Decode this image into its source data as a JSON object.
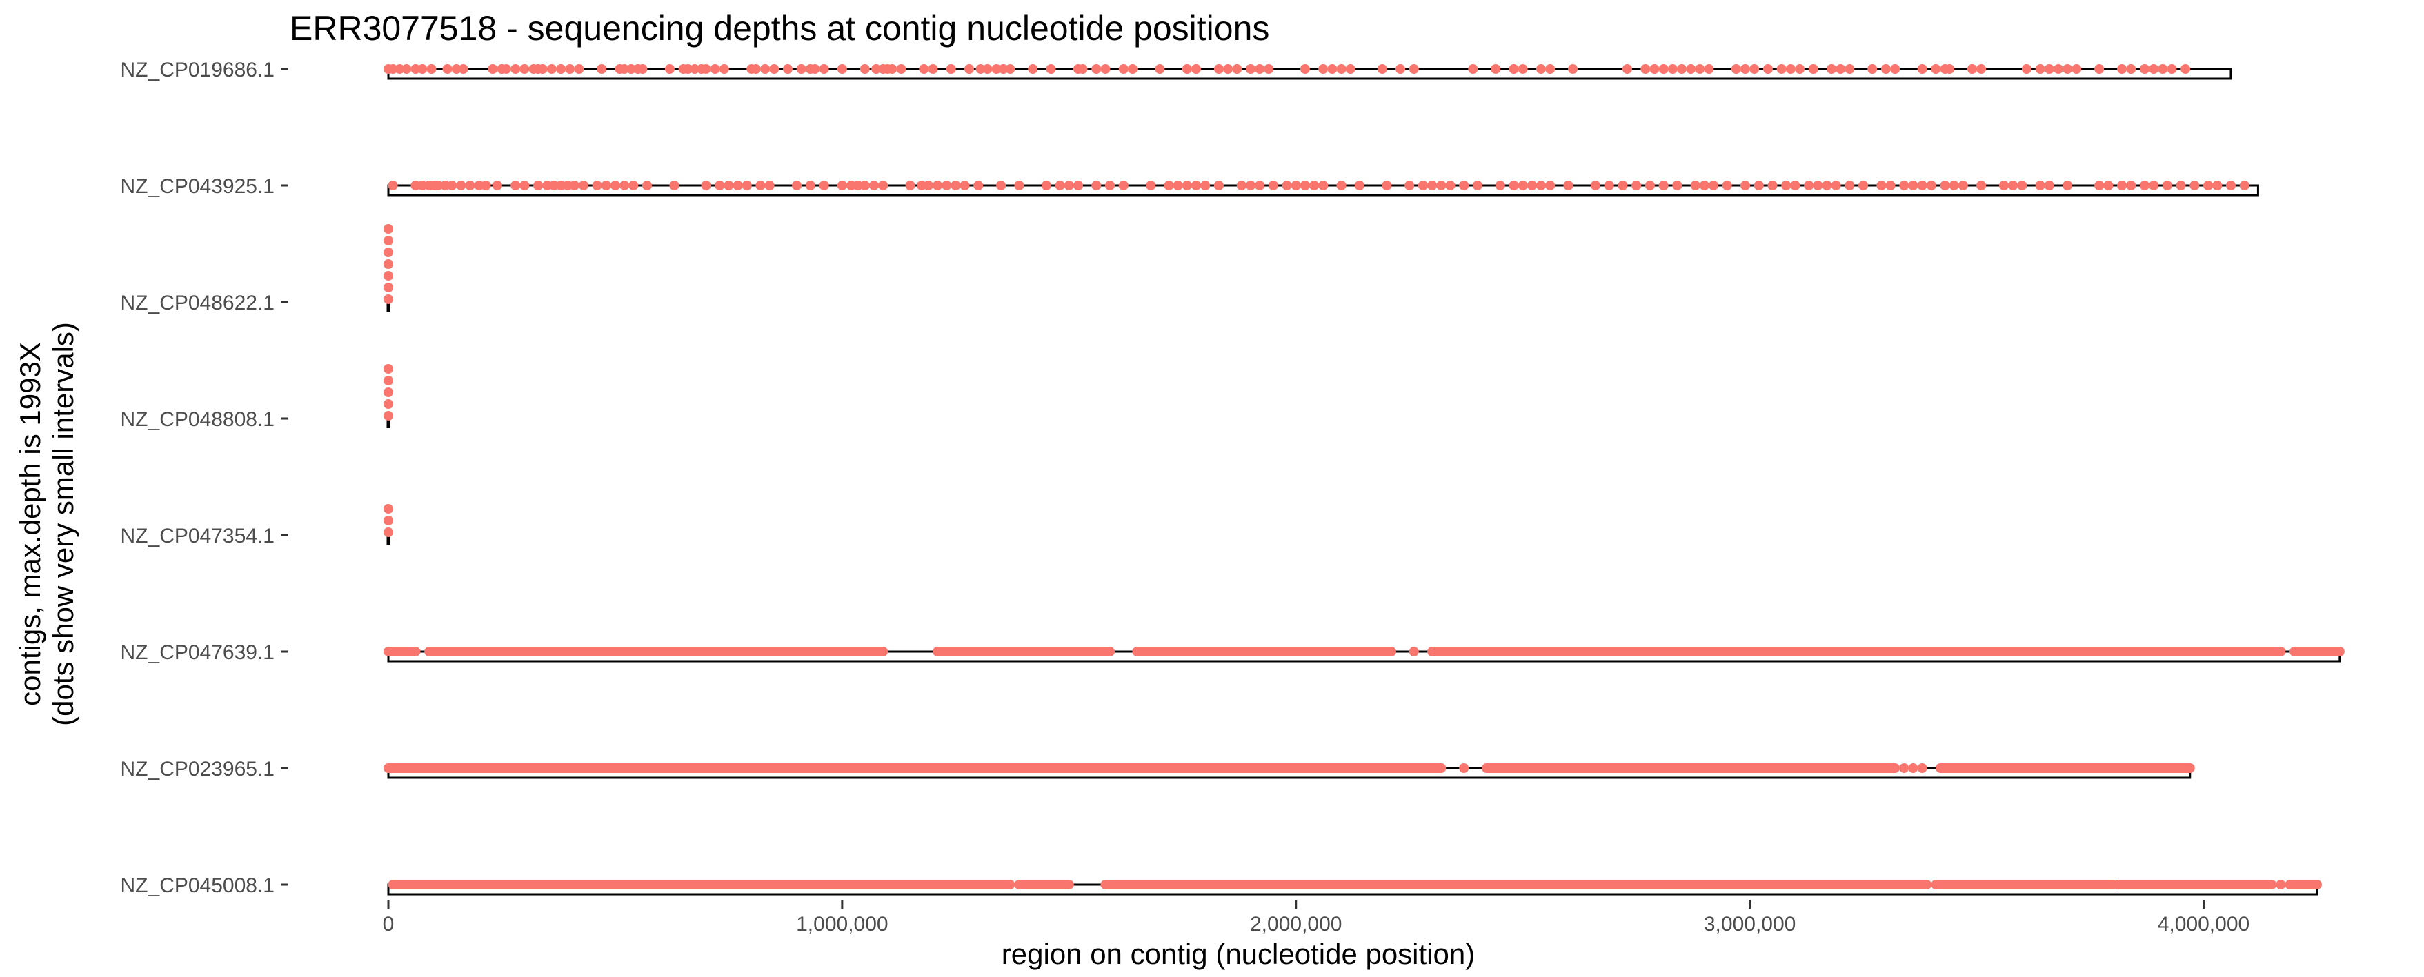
{
  "chart_data": {
    "type": "scatter",
    "title": "ERR3077518 - sequencing depths at contig nucleotide positions",
    "xlabel": "region on contig (nucleotide position)",
    "ylabel_line1": "contigs, max.depth is 1993X",
    "ylabel_line2": "(dots show very small intervals)",
    "xlim": [
      0,
      4320000
    ],
    "x_ticks": [
      {
        "value": 0,
        "label": "0"
      },
      {
        "value": 1000000,
        "label": "1,000,000"
      },
      {
        "value": 2000000,
        "label": "2,000,000"
      },
      {
        "value": 3000000,
        "label": "3,000,000"
      },
      {
        "value": 4000000,
        "label": "4,000,000"
      }
    ],
    "dot_color": "#F8766D",
    "contigs": [
      {
        "name": "NZ_CP019686.1",
        "length": 4060000,
        "dots_x": [
          0,
          10000,
          25000,
          40000,
          60000,
          75000,
          95000,
          130000,
          150000,
          165000,
          230000,
          250000,
          260000,
          280000,
          300000,
          320000,
          330000,
          340000,
          360000,
          380000,
          400000,
          420000,
          470000,
          510000,
          520000,
          535000,
          550000,
          560000,
          620000,
          650000,
          660000,
          675000,
          690000,
          700000,
          720000,
          740000,
          800000,
          810000,
          830000,
          850000,
          880000,
          910000,
          930000,
          940000,
          960000,
          1000000,
          1050000,
          1075000,
          1090000,
          1100000,
          1110000,
          1130000,
          1180000,
          1200000,
          1240000,
          1280000,
          1305000,
          1320000,
          1340000,
          1355000,
          1370000,
          1420000,
          1460000,
          1520000,
          1530000,
          1560000,
          1580000,
          1620000,
          1640000,
          1700000,
          1760000,
          1780000,
          1830000,
          1850000,
          1870000,
          1900000,
          1920000,
          1940000,
          2020000,
          2060000,
          2080000,
          2100000,
          2120000,
          2190000,
          2230000,
          2260000,
          2390000,
          2440000,
          2480000,
          2500000,
          2540000,
          2560000,
          2610000,
          2730000,
          2770000,
          2790000,
          2810000,
          2830000,
          2850000,
          2870000,
          2890000,
          2910000,
          2970000,
          2990000,
          3010000,
          3040000,
          3070000,
          3090000,
          3110000,
          3140000,
          3180000,
          3200000,
          3220000,
          3270000,
          3300000,
          3320000,
          3380000,
          3410000,
          3430000,
          3440000,
          3490000,
          3510000,
          3610000,
          3640000,
          3660000,
          3680000,
          3700000,
          3720000,
          3770000,
          3820000,
          3840000,
          3870000,
          3890000,
          3910000,
          3930000,
          3960000
        ]
      },
      {
        "name": "NZ_CP043925.1",
        "length": 4120000,
        "dots_x": [
          10000,
          60000,
          75000,
          90000,
          100000,
          110000,
          125000,
          140000,
          160000,
          180000,
          200000,
          215000,
          240000,
          280000,
          300000,
          330000,
          350000,
          365000,
          380000,
          395000,
          410000,
          430000,
          460000,
          480000,
          500000,
          520000,
          540000,
          570000,
          630000,
          700000,
          730000,
          750000,
          770000,
          790000,
          820000,
          840000,
          900000,
          930000,
          960000,
          1000000,
          1020000,
          1035000,
          1050000,
          1070000,
          1090000,
          1150000,
          1175000,
          1190000,
          1210000,
          1230000,
          1250000,
          1270000,
          1300000,
          1350000,
          1390000,
          1450000,
          1480000,
          1500000,
          1520000,
          1560000,
          1590000,
          1620000,
          1680000,
          1720000,
          1740000,
          1760000,
          1780000,
          1800000,
          1830000,
          1880000,
          1900000,
          1920000,
          1950000,
          1980000,
          2000000,
          2020000,
          2040000,
          2060000,
          2100000,
          2140000,
          2200000,
          2250000,
          2280000,
          2300000,
          2320000,
          2340000,
          2370000,
          2400000,
          2450000,
          2480000,
          2500000,
          2520000,
          2540000,
          2560000,
          2600000,
          2660000,
          2690000,
          2720000,
          2750000,
          2780000,
          2810000,
          2840000,
          2880000,
          2900000,
          2920000,
          2950000,
          2990000,
          3020000,
          3050000,
          3080000,
          3100000,
          3130000,
          3150000,
          3170000,
          3190000,
          3220000,
          3250000,
          3290000,
          3310000,
          3340000,
          3360000,
          3380000,
          3400000,
          3430000,
          3450000,
          3470000,
          3510000,
          3560000,
          3580000,
          3600000,
          3640000,
          3660000,
          3700000,
          3770000,
          3790000,
          3820000,
          3840000,
          3870000,
          3890000,
          3920000,
          3950000,
          3980000,
          4010000,
          4030000,
          4060000,
          4090000
        ]
      },
      {
        "name": "NZ_CP048622.1",
        "length": 2500,
        "depth_levels": 7
      },
      {
        "name": "NZ_CP048808.1",
        "length": 2500,
        "depth_levels": 5
      },
      {
        "name": "NZ_CP047354.1",
        "length": 2500,
        "depth_levels": 3
      },
      {
        "name": "NZ_CP047639.1",
        "length": 4300000,
        "dense_segments": [
          [
            0,
            60000
          ],
          [
            90000,
            1090000
          ],
          [
            1210000,
            1590000
          ],
          [
            1650000,
            2210000
          ],
          [
            2300000,
            4170000
          ],
          [
            4200000,
            4300000
          ]
        ],
        "dots_x": [
          2260000
        ]
      },
      {
        "name": "NZ_CP023965.1",
        "length": 3970000,
        "dense_segments": [
          [
            0,
            2320000
          ],
          [
            2420000,
            3320000
          ],
          [
            3420000,
            3970000
          ]
        ],
        "dots_x": [
          2370000,
          3340000,
          3360000,
          3380000
        ]
      },
      {
        "name": "NZ_CP045008.1",
        "length": 4250000,
        "dense_segments": [
          [
            10000,
            1370000
          ],
          [
            1390000,
            1500000
          ],
          [
            1580000,
            3390000
          ],
          [
            3410000,
            3800000
          ],
          [
            3810000,
            4150000
          ],
          [
            4190000,
            4250000
          ]
        ],
        "dots_x": [
          4170000
        ]
      }
    ]
  }
}
